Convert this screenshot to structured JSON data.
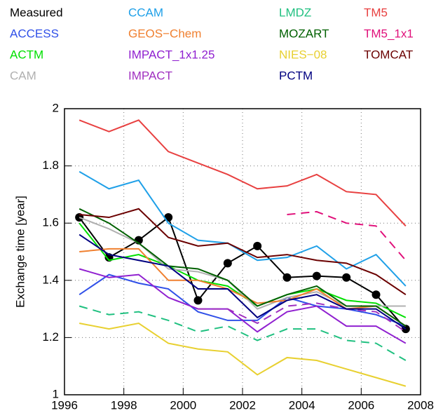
{
  "chart_data": {
    "type": "line",
    "x": [
      1996.5,
      1997.5,
      1998.5,
      1999.5,
      2000.5,
      2001.5,
      2002.5,
      2003.5,
      2004.5,
      2005.5,
      2006.5,
      2007.5
    ],
    "y_label": "Exchange time [year]",
    "xlim": [
      1996,
      2008
    ],
    "xticks": [
      1996,
      1998,
      2000,
      2002,
      2004,
      2006,
      2008
    ],
    "ylim": [
      1,
      2
    ],
    "yticks": [
      1,
      1.2,
      1.4,
      1.6,
      1.8,
      2
    ],
    "grid": true,
    "series": [
      {
        "name": "Measured",
        "color": "#000000",
        "markers": true,
        "values": [
          1.62,
          1.48,
          1.54,
          1.62,
          1.33,
          1.46,
          1.52,
          1.41,
          1.415,
          1.41,
          1.35,
          1.23
        ]
      },
      {
        "name": "ACCESS",
        "color": "#3050e8",
        "values": [
          1.35,
          1.42,
          1.39,
          1.37,
          1.29,
          1.26,
          1.26,
          1.34,
          1.31,
          1.3,
          1.28,
          1.24
        ]
      },
      {
        "name": "ACTM",
        "color": "#00e000",
        "values": [
          1.6,
          1.47,
          1.49,
          1.45,
          1.4,
          1.38,
          1.31,
          1.35,
          1.37,
          1.33,
          1.32,
          1.27
        ]
      },
      {
        "name": "CAM",
        "color": "#b0b0b0",
        "values": [
          1.62,
          1.58,
          1.53,
          1.44,
          1.43,
          1.4,
          1.3,
          1.34,
          1.36,
          1.31,
          1.31,
          1.31
        ]
      },
      {
        "name": "CCAM",
        "color": "#1fa0e8",
        "values": [
          1.78,
          1.72,
          1.75,
          1.6,
          1.54,
          1.53,
          1.47,
          1.48,
          1.52,
          1.44,
          1.49,
          1.38
        ]
      },
      {
        "name": "GEOS−Chem",
        "color": "#f08030",
        "values": [
          1.5,
          1.51,
          1.51,
          1.4,
          1.4,
          1.37,
          1.32,
          1.33,
          1.37,
          1.3,
          1.31,
          1.24
        ]
      },
      {
        "name": "IMPACT_1x1.25",
        "color": "#9020d0",
        "values": [
          1.44,
          1.41,
          1.42,
          1.34,
          1.3,
          1.3,
          1.22,
          1.29,
          1.31,
          1.24,
          1.24,
          1.18
        ]
      },
      {
        "name": "IMPACT",
        "color": "#a030c0",
        "dashed": true,
        "values": [
          null,
          null,
          null,
          null,
          1.3,
          1.3,
          1.25,
          1.31,
          1.32,
          1.3,
          1.29,
          1.22
        ]
      },
      {
        "name": "LMDZ",
        "color": "#20c080",
        "dashed": true,
        "values": [
          1.31,
          1.28,
          1.29,
          1.26,
          1.22,
          1.24,
          1.19,
          1.23,
          1.23,
          1.19,
          1.18,
          1.12
        ]
      },
      {
        "name": "MOZART",
        "color": "#006000",
        "values": [
          1.65,
          1.6,
          1.53,
          1.45,
          1.44,
          1.4,
          1.31,
          1.35,
          1.38,
          1.31,
          1.31,
          1.24
        ]
      },
      {
        "name": "NIES−08",
        "color": "#e8d030",
        "values": [
          1.25,
          1.23,
          1.25,
          1.18,
          1.16,
          1.15,
          1.07,
          1.13,
          1.12,
          1.09,
          1.06,
          1.03
        ]
      },
      {
        "name": "PCTM",
        "color": "#000080",
        "values": [
          1.56,
          1.49,
          1.47,
          1.45,
          1.37,
          1.37,
          1.27,
          1.33,
          1.35,
          1.3,
          1.3,
          1.23
        ]
      },
      {
        "name": "TM5",
        "color": "#e84040",
        "values": [
          1.96,
          1.92,
          1.96,
          1.85,
          1.81,
          1.77,
          1.72,
          1.73,
          1.77,
          1.71,
          1.7,
          1.59
        ]
      },
      {
        "name": "TM5_1x1",
        "color": "#e0107a",
        "dashed": true,
        "values": [
          null,
          null,
          null,
          null,
          null,
          null,
          null,
          1.63,
          1.64,
          1.6,
          1.59,
          1.47
        ]
      },
      {
        "name": "TOMCAT",
        "color": "#6b0000",
        "values": [
          1.63,
          1.62,
          1.65,
          1.55,
          1.52,
          1.53,
          1.48,
          1.49,
          1.47,
          1.46,
          1.42,
          1.35
        ]
      }
    ]
  }
}
